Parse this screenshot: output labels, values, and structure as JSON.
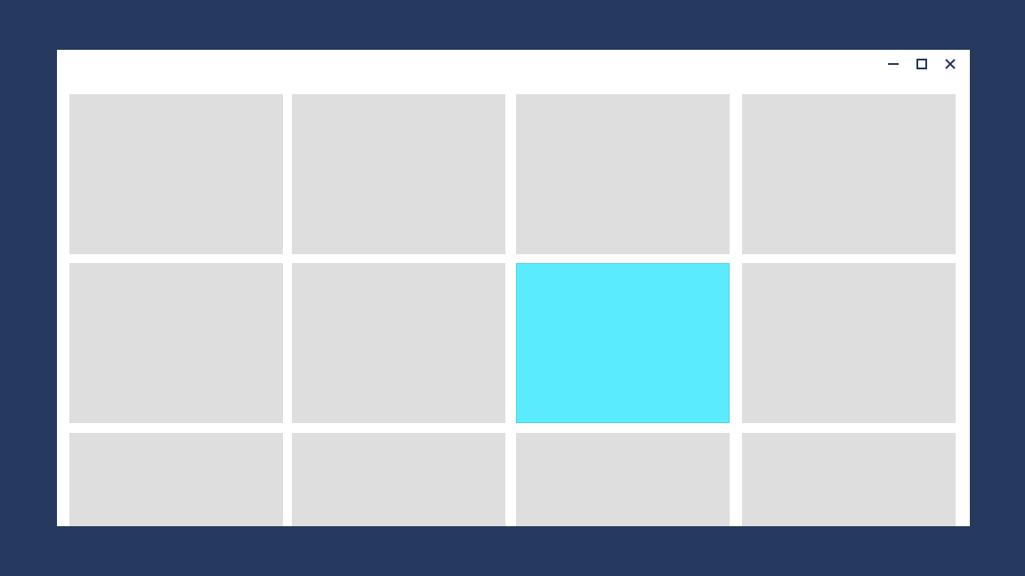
{
  "window": {
    "controls": [
      {
        "name": "minimize-button",
        "icon": "minimize-icon"
      },
      {
        "name": "maximize-button",
        "icon": "maximize-icon"
      },
      {
        "name": "close-button",
        "icon": "close-icon"
      }
    ]
  },
  "colors": {
    "desktop_background": "#253a5e",
    "window_background": "#ffffff",
    "tile": "#dedede",
    "tile_selected": "#5aebfe",
    "control_icon": "#253a5e"
  },
  "grid": {
    "rows": 3,
    "columns": 4,
    "selected": {
      "row": 2,
      "column": 3
    }
  }
}
